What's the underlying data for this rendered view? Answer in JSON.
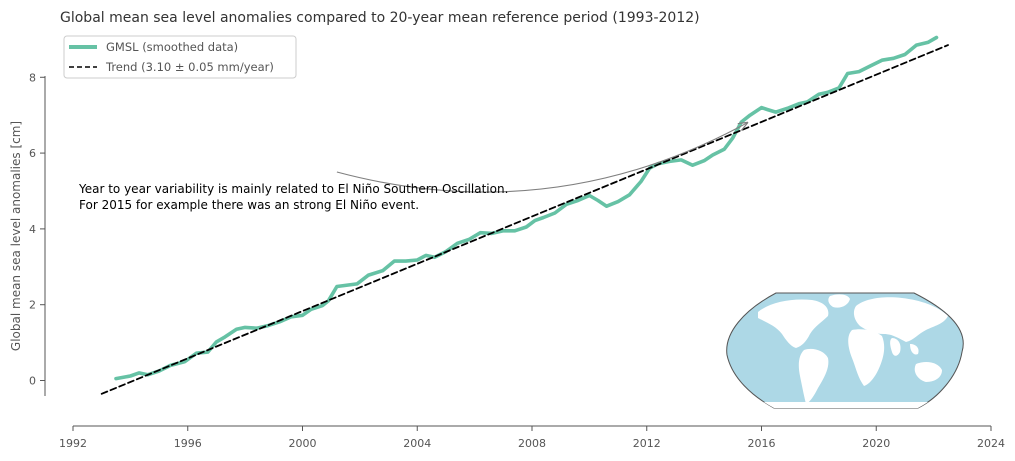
{
  "chart_data": {
    "type": "line",
    "title": "Global mean sea level anomalies compared to 20-year mean reference period (1993-2012)",
    "xlabel": "",
    "ylabel": "Global mean sea level anomalies [cm]",
    "xlim": [
      1992,
      2024
    ],
    "ylim": [
      -1.2,
      9.3
    ],
    "xticks": [
      "1992",
      "1996",
      "2000",
      "2004",
      "2008",
      "2012",
      "2016",
      "2020",
      "2024"
    ],
    "yticks": [
      "0",
      "2",
      "4",
      "6",
      "8"
    ],
    "grid": false,
    "legend_position": "top-left",
    "series": [
      {
        "name": "GMSL (smoothed data)",
        "color": "#66c2a5",
        "style": "solid",
        "x": [
          1993.5,
          1994.0,
          1994.3,
          1994.6,
          1995.0,
          1995.4,
          1995.9,
          1996.3,
          1996.7,
          1997.0,
          1997.3,
          1997.7,
          1998.0,
          1998.4,
          1998.8,
          1999.2,
          1999.6,
          2000.0,
          2000.3,
          2000.7,
          2000.9,
          2001.2,
          2001.6,
          2001.9,
          2002.3,
          2002.8,
          2003.2,
          2003.6,
          2004.0,
          2004.3,
          2004.6,
          2005.0,
          2005.4,
          2005.8,
          2006.2,
          2006.6,
          2007.0,
          2007.4,
          2007.8,
          2008.1,
          2008.4,
          2008.8,
          2009.2,
          2009.6,
          2010.0,
          2010.3,
          2010.6,
          2011.0,
          2011.4,
          2011.8,
          2012.1,
          2012.4,
          2012.8,
          2013.2,
          2013.6,
          2014.0,
          2014.3,
          2014.7,
          2015.0,
          2015.3,
          2015.6,
          2016.0,
          2016.2,
          2016.5,
          2016.9,
          2017.3,
          2017.6,
          2018.0,
          2018.3,
          2018.7,
          2019.0,
          2019.4,
          2019.8,
          2020.2,
          2020.6,
          2021.0,
          2021.4,
          2021.8,
          2022.1
        ],
        "y": [
          0.05,
          0.12,
          0.2,
          0.15,
          0.25,
          0.4,
          0.5,
          0.72,
          0.75,
          1.02,
          1.15,
          1.35,
          1.4,
          1.38,
          1.45,
          1.55,
          1.68,
          1.72,
          1.88,
          1.98,
          2.1,
          2.48,
          2.52,
          2.55,
          2.78,
          2.9,
          3.15,
          3.15,
          3.18,
          3.3,
          3.25,
          3.4,
          3.62,
          3.72,
          3.9,
          3.88,
          3.95,
          3.95,
          4.05,
          4.22,
          4.3,
          4.42,
          4.65,
          4.75,
          4.88,
          4.75,
          4.6,
          4.72,
          4.9,
          5.25,
          5.6,
          5.72,
          5.78,
          5.82,
          5.68,
          5.8,
          5.95,
          6.1,
          6.4,
          6.82,
          7.0,
          7.2,
          7.15,
          7.08,
          7.18,
          7.3,
          7.35,
          7.55,
          7.6,
          7.72,
          8.1,
          8.15,
          8.3,
          8.45,
          8.5,
          8.6,
          8.85,
          8.92,
          9.05
        ]
      },
      {
        "name": "Trend (3.10 ± 0.05 mm/year)",
        "color": "#000000",
        "style": "dashed",
        "x": [
          1993.0,
          2022.5
        ],
        "y": [
          -0.35,
          8.85
        ]
      }
    ],
    "annotation": {
      "lines": [
        "Year to year variability is mainly related to El Niño Southern Oscillation.",
        "For 2015 for example there was an strong El Niño event."
      ],
      "arrow_from": {
        "x": 2001.2,
        "y": 5.5
      },
      "arrow_to": {
        "x": 2015.5,
        "y": 6.8
      }
    },
    "inset": {
      "description_icon": "world-map-icon",
      "ocean_color": "#add8e6",
      "land_color": "#ffffff"
    }
  }
}
